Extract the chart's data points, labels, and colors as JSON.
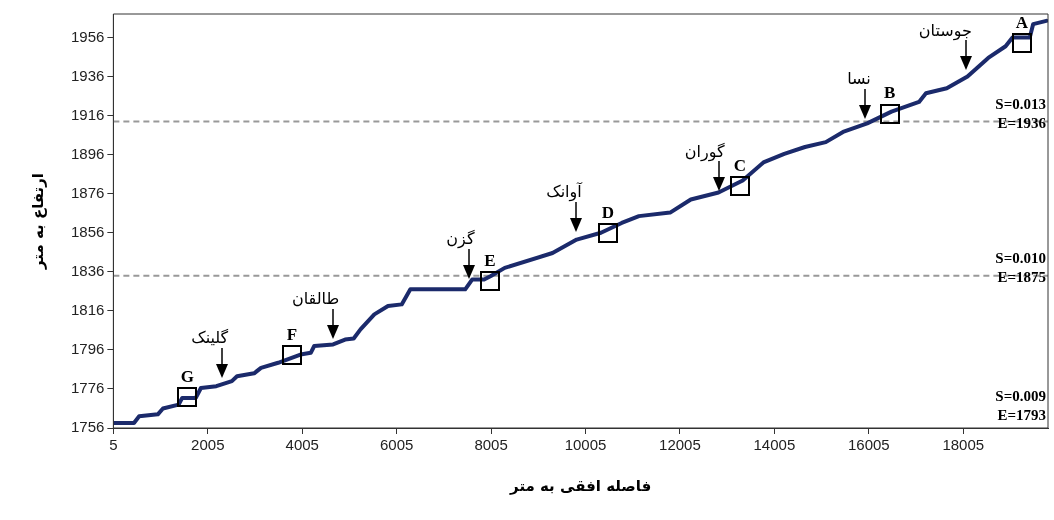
{
  "chart_data": {
    "type": "line",
    "xlabel": "فاصله افقی به متر",
    "ylabel": "ارتفاع به متر",
    "xlim": [
      5,
      19800
    ],
    "xticks": [
      5,
      2005,
      4005,
      6005,
      8005,
      10005,
      12005,
      14005,
      16005,
      18005
    ],
    "ylim": [
      1756,
      1968
    ],
    "yticks": [
      1756,
      1776,
      1796,
      1816,
      1836,
      1856,
      1876,
      1896,
      1916,
      1936,
      1956
    ],
    "series": [
      {
        "color": "#1b2a6b",
        "x": [
          5,
          442,
          551,
          947,
          1055,
          1388,
          1463,
          1751,
          1859,
          2186,
          2515,
          2624,
          2986,
          3132,
          3495,
          3968,
          4186,
          4259,
          4659,
          4913,
          5095,
          5239,
          5532,
          5822,
          6112,
          6295,
          7457,
          7603,
          7857,
          8001,
          8294,
          9306,
          9818,
          10332,
          10771,
          11136,
          11797,
          12235,
          12822,
          13334,
          13773,
          14214,
          14653,
          15093,
          15459,
          15971,
          16485,
          17069,
          17215,
          17656,
          18095,
          18534,
          18902,
          19048,
          19414,
          19485,
          19765
        ],
        "values": [
          1758.6,
          1758.6,
          1762,
          1763,
          1766,
          1768,
          1771.4,
          1771.4,
          1776.5,
          1777.4,
          1780,
          1782.5,
          1784,
          1786.8,
          1789.4,
          1793.6,
          1794.5,
          1798,
          1798.8,
          1801.3,
          1801.8,
          1806.5,
          1814.2,
          1818.5,
          1819.3,
          1827,
          1827,
          1832,
          1832,
          1833.8,
          1838,
          1845.6,
          1852.5,
          1856,
          1861,
          1864.5,
          1866.3,
          1873,
          1876.6,
          1882.7,
          1892,
          1896.4,
          1899.9,
          1902.4,
          1907.6,
          1912,
          1918,
          1923,
          1927.4,
          1930,
          1936,
          1945.5,
          1951.5,
          1956,
          1956,
          1962.8,
          1964.5
        ]
      }
    ],
    "ref_lines": [
      {
        "axis": "y",
        "value": 1913,
        "color": "#999999",
        "line_style": "dashed"
      },
      {
        "axis": "y",
        "value": 1834,
        "color": "#999999",
        "line_style": "dashed"
      }
    ],
    "annotations": [
      {
        "text": "گلینک",
        "x": 2310,
        "y": 1781
      },
      {
        "text": "طالقان",
        "x": 4659,
        "y": 1801
      },
      {
        "text": "گزن",
        "x": 7528,
        "y": 1832
      },
      {
        "text": "آوانک",
        "x": 9797,
        "y": 1856
      },
      {
        "text": "گوران",
        "x": 12822,
        "y": 1876.6
      },
      {
        "text": "نسا",
        "x": 15919,
        "y": 1913.7
      },
      {
        "text": "جوستان",
        "x": 18060,
        "y": 1938.6
      },
      {
        "text": "G",
        "x": 1570,
        "y": 1772
      },
      {
        "text": "F",
        "x": 3786,
        "y": 1793.4
      },
      {
        "text": "E",
        "x": 7979,
        "y": 1831.4
      },
      {
        "text": "D",
        "x": 10478,
        "y": 1856
      },
      {
        "text": "C",
        "x": 13277,
        "y": 1880
      },
      {
        "text": "B",
        "x": 16448,
        "y": 1917
      },
      {
        "text": "A",
        "x": 19247,
        "y": 1953
      },
      "S=0.013\nE=1936",
      "S=0.010\nE=1875",
      "S=0.009\nE=1793"
    ]
  }
}
